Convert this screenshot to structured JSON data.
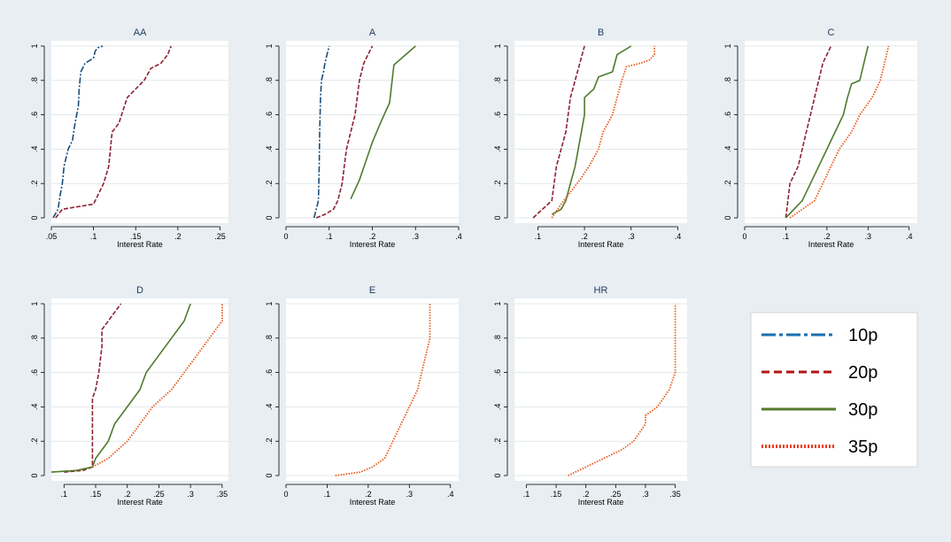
{
  "chart_data": [
    {
      "type": "line",
      "title": "AA",
      "xlabel": "Interest Rate",
      "xlim": [
        0.05,
        0.26
      ],
      "ylim": [
        0,
        1
      ],
      "xticks": [
        0.05,
        0.1,
        0.15,
        0.2,
        0.25
      ],
      "xticklabels": [
        ".05",
        ".1",
        ".15",
        ".2",
        ".25"
      ],
      "yticks": [
        0,
        0.2,
        0.4,
        0.6,
        0.8,
        1
      ],
      "yticklabels": [
        "0",
        ".2",
        ".4",
        ".6",
        ".8",
        "1"
      ],
      "series": [
        {
          "name": "10p",
          "points": [
            [
              0.052,
              0
            ],
            [
              0.058,
              0.05
            ],
            [
              0.06,
              0.12
            ],
            [
              0.063,
              0.2
            ],
            [
              0.065,
              0.3
            ],
            [
              0.07,
              0.4
            ],
            [
              0.075,
              0.45
            ],
            [
              0.078,
              0.55
            ],
            [
              0.082,
              0.65
            ],
            [
              0.083,
              0.75
            ],
            [
              0.085,
              0.85
            ],
            [
              0.09,
              0.9
            ],
            [
              0.1,
              0.93
            ],
            [
              0.102,
              0.97
            ],
            [
              0.105,
              0.99
            ],
            [
              0.111,
              1
            ]
          ]
        },
        {
          "name": "20p",
          "points": [
            [
              0.055,
              0
            ],
            [
              0.063,
              0.05
            ],
            [
              0.1,
              0.08
            ],
            [
              0.112,
              0.2
            ],
            [
              0.118,
              0.3
            ],
            [
              0.12,
              0.4
            ],
            [
              0.122,
              0.5
            ],
            [
              0.13,
              0.55
            ],
            [
              0.14,
              0.7
            ],
            [
              0.15,
              0.75
            ],
            [
              0.16,
              0.8
            ],
            [
              0.168,
              0.87
            ],
            [
              0.18,
              0.9
            ],
            [
              0.188,
              0.95
            ],
            [
              0.192,
              1
            ]
          ]
        }
      ]
    },
    {
      "type": "line",
      "title": "A",
      "xlabel": "Interest Rate",
      "xlim": [
        0,
        0.4
      ],
      "ylim": [
        0,
        1
      ],
      "xticks": [
        0,
        0.1,
        0.2,
        0.3,
        0.4
      ],
      "xticklabels": [
        "0",
        ".1",
        ".2",
        ".3",
        ".4"
      ],
      "yticks": [
        0,
        0.2,
        0.4,
        0.6,
        0.8,
        1
      ],
      "yticklabels": [
        "0",
        ".2",
        ".4",
        ".6",
        ".8",
        "1"
      ],
      "series": [
        {
          "name": "10p",
          "points": [
            [
              0.065,
              0
            ],
            [
              0.07,
              0.05
            ],
            [
              0.075,
              0.1
            ],
            [
              0.077,
              0.3
            ],
            [
              0.078,
              0.5
            ],
            [
              0.08,
              0.7
            ],
            [
              0.082,
              0.8
            ],
            [
              0.087,
              0.85
            ],
            [
              0.09,
              0.9
            ],
            [
              0.095,
              0.95
            ],
            [
              0.1,
              1
            ]
          ]
        },
        {
          "name": "20p",
          "points": [
            [
              0.07,
              0
            ],
            [
              0.09,
              0.02
            ],
            [
              0.11,
              0.05
            ],
            [
              0.12,
              0.1
            ],
            [
              0.13,
              0.2
            ],
            [
              0.135,
              0.3
            ],
            [
              0.14,
              0.4
            ],
            [
              0.15,
              0.5
            ],
            [
              0.16,
              0.6
            ],
            [
              0.165,
              0.7
            ],
            [
              0.17,
              0.8
            ],
            [
              0.18,
              0.9
            ],
            [
              0.19,
              0.95
            ],
            [
              0.2,
              1
            ]
          ]
        },
        {
          "name": "30p",
          "points": [
            [
              0.15,
              0.11
            ],
            [
              0.17,
              0.22
            ],
            [
              0.185,
              0.33
            ],
            [
              0.2,
              0.44
            ],
            [
              0.22,
              0.56
            ],
            [
              0.24,
              0.67
            ],
            [
              0.245,
              0.78
            ],
            [
              0.25,
              0.89
            ],
            [
              0.3,
              1
            ]
          ]
        }
      ]
    },
    {
      "type": "line",
      "title": "B",
      "xlabel": "Interest Rate",
      "xlim": [
        0.05,
        0.42
      ],
      "ylim": [
        0,
        1
      ],
      "xticks": [
        0.1,
        0.2,
        0.3,
        0.4
      ],
      "xticklabels": [
        ".1",
        ".2",
        ".3",
        ".4"
      ],
      "yticks": [
        0,
        0.2,
        0.4,
        0.6,
        0.8,
        1
      ],
      "yticklabels": [
        "0",
        ".2",
        ".4",
        ".6",
        ".8",
        "1"
      ],
      "series": [
        {
          "name": "20p",
          "points": [
            [
              0.09,
              0
            ],
            [
              0.11,
              0.05
            ],
            [
              0.13,
              0.1
            ],
            [
              0.135,
              0.2
            ],
            [
              0.14,
              0.3
            ],
            [
              0.15,
              0.4
            ],
            [
              0.16,
              0.5
            ],
            [
              0.165,
              0.6
            ],
            [
              0.17,
              0.7
            ],
            [
              0.18,
              0.8
            ],
            [
              0.19,
              0.9
            ],
            [
              0.2,
              1
            ]
          ]
        },
        {
          "name": "30p",
          "points": [
            [
              0.13,
              0.02
            ],
            [
              0.15,
              0.05
            ],
            [
              0.16,
              0.1
            ],
            [
              0.17,
              0.2
            ],
            [
              0.18,
              0.3
            ],
            [
              0.19,
              0.45
            ],
            [
              0.2,
              0.6
            ],
            [
              0.2,
              0.7
            ],
            [
              0.22,
              0.75
            ],
            [
              0.23,
              0.82
            ],
            [
              0.26,
              0.85
            ],
            [
              0.27,
              0.95
            ],
            [
              0.3,
              1
            ]
          ]
        },
        {
          "name": "35p",
          "points": [
            [
              0.13,
              0
            ],
            [
              0.15,
              0.08
            ],
            [
              0.17,
              0.15
            ],
            [
              0.19,
              0.22
            ],
            [
              0.21,
              0.3
            ],
            [
              0.23,
              0.4
            ],
            [
              0.24,
              0.5
            ],
            [
              0.26,
              0.6
            ],
            [
              0.27,
              0.7
            ],
            [
              0.28,
              0.8
            ],
            [
              0.29,
              0.88
            ],
            [
              0.32,
              0.9
            ],
            [
              0.34,
              0.92
            ],
            [
              0.35,
              0.95
            ],
            [
              0.35,
              1
            ]
          ]
        }
      ]
    },
    {
      "type": "line",
      "title": "C",
      "xlabel": "Interest Rate",
      "xlim": [
        0,
        0.42
      ],
      "ylim": [
        0,
        1
      ],
      "xticks": [
        0,
        0.1,
        0.2,
        0.3,
        0.4
      ],
      "xticklabels": [
        "0",
        ".1",
        ".2",
        ".3",
        ".4"
      ],
      "yticks": [
        0,
        0.2,
        0.4,
        0.6,
        0.8,
        1
      ],
      "yticklabels": [
        "0",
        ".2",
        ".4",
        ".6",
        ".8",
        "1"
      ],
      "series": [
        {
          "name": "20p",
          "points": [
            [
              0.1,
              0
            ],
            [
              0.105,
              0.1
            ],
            [
              0.11,
              0.2
            ],
            [
              0.13,
              0.3
            ],
            [
              0.14,
              0.4
            ],
            [
              0.15,
              0.5
            ],
            [
              0.16,
              0.6
            ],
            [
              0.17,
              0.7
            ],
            [
              0.18,
              0.8
            ],
            [
              0.19,
              0.9
            ],
            [
              0.21,
              1
            ]
          ]
        },
        {
          "name": "30p",
          "points": [
            [
              0.1,
              0
            ],
            [
              0.12,
              0.05
            ],
            [
              0.14,
              0.1
            ],
            [
              0.16,
              0.2
            ],
            [
              0.18,
              0.3
            ],
            [
              0.2,
              0.4
            ],
            [
              0.22,
              0.5
            ],
            [
              0.24,
              0.6
            ],
            [
              0.25,
              0.7
            ],
            [
              0.26,
              0.78
            ],
            [
              0.28,
              0.8
            ],
            [
              0.29,
              0.9
            ],
            [
              0.3,
              1
            ]
          ]
        },
        {
          "name": "35p",
          "points": [
            [
              0.11,
              0
            ],
            [
              0.14,
              0.05
            ],
            [
              0.17,
              0.1
            ],
            [
              0.19,
              0.2
            ],
            [
              0.21,
              0.3
            ],
            [
              0.23,
              0.4
            ],
            [
              0.26,
              0.5
            ],
            [
              0.28,
              0.6
            ],
            [
              0.31,
              0.7
            ],
            [
              0.33,
              0.8
            ],
            [
              0.34,
              0.9
            ],
            [
              0.35,
              1
            ]
          ]
        }
      ]
    },
    {
      "type": "line",
      "title": "D",
      "xlabel": "Interest Rate",
      "xlim": [
        0.08,
        0.36
      ],
      "ylim": [
        0,
        1
      ],
      "xticks": [
        0.1,
        0.15,
        0.2,
        0.25,
        0.3,
        0.35
      ],
      "xticklabels": [
        ".1",
        ".15",
        ".2",
        ".25",
        ".3",
        ".35"
      ],
      "yticks": [
        0,
        0.2,
        0.4,
        0.6,
        0.8,
        1
      ],
      "yticklabels": [
        "0",
        ".2",
        ".4",
        ".6",
        ".8",
        "1"
      ],
      "series": [
        {
          "name": "20p",
          "points": [
            [
              0.1,
              0.02
            ],
            [
              0.13,
              0.03
            ],
            [
              0.145,
              0.05
            ],
            [
              0.145,
              0.45
            ],
            [
              0.15,
              0.5
            ],
            [
              0.155,
              0.6
            ],
            [
              0.16,
              0.75
            ],
            [
              0.16,
              0.85
            ],
            [
              0.17,
              0.9
            ],
            [
              0.18,
              0.95
            ],
            [
              0.19,
              1
            ]
          ]
        },
        {
          "name": "30p",
          "points": [
            [
              0.08,
              0.02
            ],
            [
              0.12,
              0.03
            ],
            [
              0.145,
              0.05
            ],
            [
              0.15,
              0.1
            ],
            [
              0.17,
              0.2
            ],
            [
              0.18,
              0.3
            ],
            [
              0.2,
              0.4
            ],
            [
              0.22,
              0.5
            ],
            [
              0.23,
              0.6
            ],
            [
              0.25,
              0.7
            ],
            [
              0.27,
              0.8
            ],
            [
              0.29,
              0.9
            ],
            [
              0.3,
              1
            ]
          ]
        },
        {
          "name": "35p",
          "points": [
            [
              0.145,
              0.05
            ],
            [
              0.17,
              0.1
            ],
            [
              0.2,
              0.2
            ],
            [
              0.22,
              0.3
            ],
            [
              0.24,
              0.4
            ],
            [
              0.27,
              0.5
            ],
            [
              0.29,
              0.6
            ],
            [
              0.31,
              0.7
            ],
            [
              0.33,
              0.8
            ],
            [
              0.35,
              0.9
            ],
            [
              0.35,
              1
            ]
          ]
        }
      ]
    },
    {
      "type": "line",
      "title": "E",
      "xlabel": "Interest Rate",
      "xlim": [
        0,
        0.42
      ],
      "ylim": [
        0,
        1
      ],
      "xticks": [
        0,
        0.1,
        0.2,
        0.3,
        0.4
      ],
      "xticklabels": [
        "0",
        ".1",
        ".2",
        ".3",
        ".4"
      ],
      "yticks": [
        0,
        0.2,
        0.4,
        0.6,
        0.8,
        1
      ],
      "yticklabels": [
        "0",
        ".2",
        ".4",
        ".6",
        ".8",
        "1"
      ],
      "series": [
        {
          "name": "35p",
          "points": [
            [
              0.12,
              0
            ],
            [
              0.18,
              0.02
            ],
            [
              0.21,
              0.05
            ],
            [
              0.24,
              0.1
            ],
            [
              0.26,
              0.2
            ],
            [
              0.28,
              0.3
            ],
            [
              0.3,
              0.4
            ],
            [
              0.32,
              0.5
            ],
            [
              0.33,
              0.6
            ],
            [
              0.34,
              0.7
            ],
            [
              0.35,
              0.8
            ],
            [
              0.35,
              1
            ]
          ]
        }
      ]
    },
    {
      "type": "line",
      "title": "HR",
      "xlabel": "Interest Rate",
      "xlim": [
        0.08,
        0.37
      ],
      "ylim": [
        0,
        1
      ],
      "xticks": [
        0.1,
        0.15,
        0.2,
        0.25,
        0.3,
        0.35
      ],
      "xticklabels": [
        ".1",
        ".15",
        ".2",
        ".25",
        ".3",
        ".35"
      ],
      "yticks": [
        0,
        0.2,
        0.4,
        0.6,
        0.8,
        1
      ],
      "yticklabels": [
        "0",
        ".2",
        ".4",
        ".6",
        ".8",
        "1"
      ],
      "series": [
        {
          "name": "35p",
          "points": [
            [
              0.17,
              0
            ],
            [
              0.2,
              0.05
            ],
            [
              0.23,
              0.1
            ],
            [
              0.26,
              0.15
            ],
            [
              0.28,
              0.2
            ],
            [
              0.3,
              0.3
            ],
            [
              0.3,
              0.35
            ],
            [
              0.32,
              0.4
            ],
            [
              0.34,
              0.5
            ],
            [
              0.35,
              0.6
            ],
            [
              0.35,
              1
            ]
          ]
        }
      ]
    }
  ],
  "legend": {
    "placement": "bottom-right",
    "items": [
      {
        "label": "10p",
        "color": "#1a6faf",
        "style": "longdashdot"
      },
      {
        "label": "20p",
        "color": "#b01515",
        "style": "dash"
      },
      {
        "label": "30p",
        "color": "#557a2b",
        "style": "solid"
      },
      {
        "label": "35p",
        "color": "#e8401a",
        "style": "dot"
      }
    ]
  },
  "series_styles": {
    "10p": {
      "color": "#1a4d7a",
      "dash": "7,2,2,2"
    },
    "20p": {
      "color": "#8b2333",
      "dash": "5,2"
    },
    "30p": {
      "color": "#4f7a2e",
      "dash": ""
    },
    "35p": {
      "color": "#e8581a",
      "dash": "1.5,1.5"
    }
  }
}
